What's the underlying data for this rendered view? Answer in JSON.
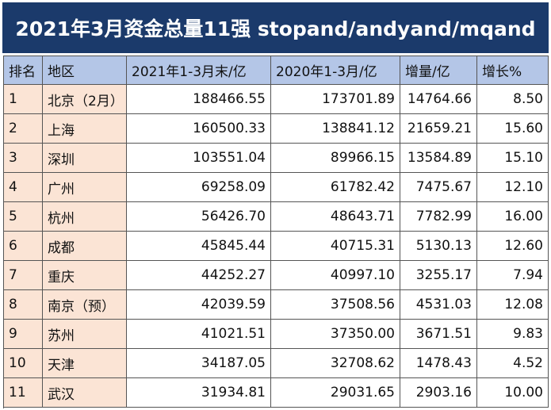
{
  "title": "2021年3月资金总量11强 stopand/andyand/mqand",
  "table": {
    "headers": [
      "排名",
      "地区",
      "2021年1-3月末/亿",
      "2020年1-3月/亿",
      "增量/亿",
      "增长%"
    ],
    "rows": [
      [
        "1",
        "北京（2月）",
        "188466.55",
        "173701.89",
        "14764.66",
        "8.50"
      ],
      [
        "2",
        "上海",
        "160500.33",
        "138841.12",
        "21659.21",
        "15.60"
      ],
      [
        "3",
        "深圳",
        "103551.04",
        "89966.15",
        "13584.89",
        "15.10"
      ],
      [
        "4",
        "广州",
        "69258.09",
        "61782.42",
        "7475.67",
        "12.10"
      ],
      [
        "5",
        "杭州",
        "56426.70",
        "48643.71",
        "7782.99",
        "16.00"
      ],
      [
        "6",
        "成都",
        "45845.44",
        "40715.31",
        "5130.13",
        "12.60"
      ],
      [
        "7",
        "重庆",
        "44252.27",
        "40997.10",
        "3255.17",
        "7.94"
      ],
      [
        "8",
        "南京（预）",
        "42039.59",
        "37508.56",
        "4531.03",
        "12.08"
      ],
      [
        "9",
        "苏州",
        "41021.51",
        "37350.00",
        "3671.51",
        "9.83"
      ],
      [
        "10",
        "天津",
        "34187.05",
        "32708.62",
        "1478.43",
        "4.52"
      ],
      [
        "11",
        "武汉",
        "31934.81",
        "29031.65",
        "2903.16",
        "10.00"
      ]
    ]
  }
}
